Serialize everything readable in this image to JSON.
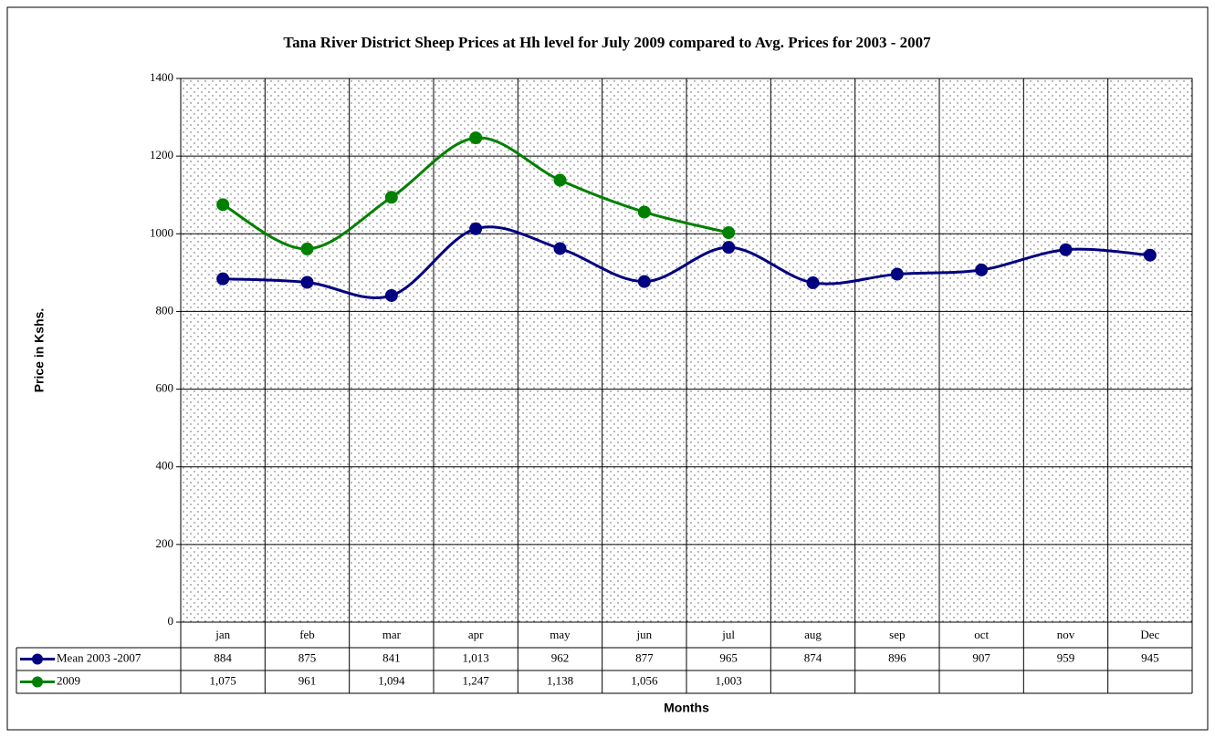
{
  "chart_data": {
    "type": "line",
    "title": "Tana River District Sheep Prices at Hh level for July 2009 compared to Avg. Prices for 2003 - 2007",
    "y_label": "Price in Kshs.",
    "x_label": "Months",
    "categories": [
      "jan",
      "feb",
      "mar",
      "apr",
      "may",
      "jun",
      "jul",
      "aug",
      "sep",
      "oct",
      "nov",
      "Dec"
    ],
    "series": [
      {
        "name": "Mean 2003 -2007",
        "color": "#000080",
        "values": [
          884,
          875,
          841,
          1013,
          962,
          877,
          965,
          874,
          896,
          907,
          959,
          945
        ],
        "value_labels": [
          "884",
          "875",
          "841",
          "1,013",
          "962",
          "877",
          "965",
          "874",
          "896",
          "907",
          "959",
          "945"
        ]
      },
      {
        "name": "2009",
        "color": "#008000",
        "values": [
          1075,
          961,
          1094,
          1247,
          1138,
          1056,
          1003,
          null,
          null,
          null,
          null,
          null
        ],
        "value_labels": [
          "1,075",
          "961",
          "1,094",
          "1,247",
          "1,138",
          "1,056",
          "1,003",
          null,
          null,
          null,
          null,
          null
        ]
      }
    ],
    "ylim": [
      0,
      1400
    ],
    "yticks": [
      0,
      200,
      400,
      600,
      800,
      1000,
      1200,
      1400
    ],
    "grid": true,
    "smooth": true,
    "data_table": true
  }
}
